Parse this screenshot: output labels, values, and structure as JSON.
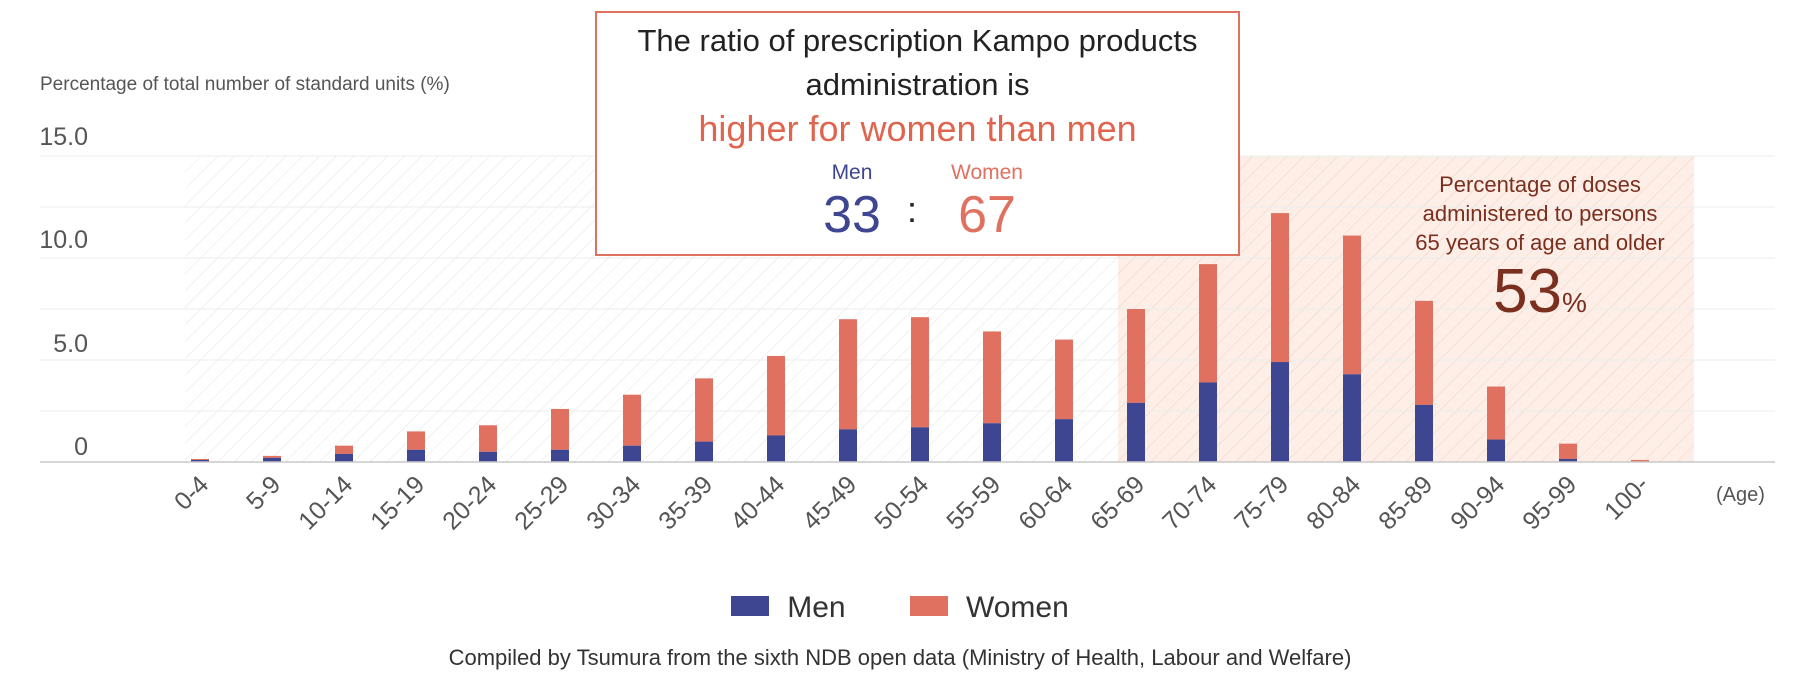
{
  "chart_data": {
    "type": "bar",
    "stacked": true,
    "ylabel": "Percentage of total number of standard units (%)",
    "xlabel": "(Age)",
    "ylim": [
      0,
      15
    ],
    "yticks": [
      "15.0",
      "10.0",
      "5.0",
      "0"
    ],
    "ytick_values": [
      15,
      10,
      5,
      0
    ],
    "categories": [
      "0-4",
      "5-9",
      "10-14",
      "15-19",
      "20-24",
      "25-29",
      "30-34",
      "35-39",
      "40-44",
      "45-49",
      "50-54",
      "55-59",
      "60-64",
      "65-69",
      "70-74",
      "75-79",
      "80-84",
      "85-89",
      "90-94",
      "95-99",
      "100-"
    ],
    "series": [
      {
        "name": "Men",
        "color": "#3e4591",
        "values": [
          0.1,
          0.2,
          0.4,
          0.6,
          0.5,
          0.6,
          0.8,
          1.0,
          1.3,
          1.6,
          1.7,
          1.9,
          2.1,
          2.9,
          3.9,
          4.9,
          4.3,
          2.8,
          1.1,
          0.15,
          0.0
        ]
      },
      {
        "name": "Women",
        "color": "#e07060",
        "values": [
          0.05,
          0.1,
          0.4,
          0.9,
          1.3,
          2.0,
          2.5,
          3.1,
          3.9,
          5.4,
          5.4,
          4.5,
          3.9,
          4.6,
          5.8,
          7.3,
          6.8,
          5.1,
          2.6,
          0.75,
          0.1
        ]
      }
    ],
    "highlight_range": [
      "65-69",
      "100-"
    ],
    "grid": true,
    "legend_position": "bottom"
  },
  "callout": {
    "line1": "The ratio of prescription Kampo products",
    "line2": "administration is",
    "highlight": "higher for women than men",
    "men_label": "Men",
    "women_label": "Women",
    "men_value": "33",
    "colon": ":",
    "women_value": "67"
  },
  "elderly": {
    "line1": "Percentage of doses",
    "line2": "administered to persons",
    "line3": "65 years of age and older",
    "value": "53",
    "unit": "%"
  },
  "legend": {
    "men": "Men",
    "women": "Women"
  },
  "source": "Compiled by Tsumura from the sixth NDB open data (Ministry of Health, Labour and Welfare)",
  "colors": {
    "men": "#3e4591",
    "women": "#e07060",
    "accent": "#e0654f",
    "elder_text": "#7a2f1f",
    "elder_bg": "#fdebe2"
  }
}
